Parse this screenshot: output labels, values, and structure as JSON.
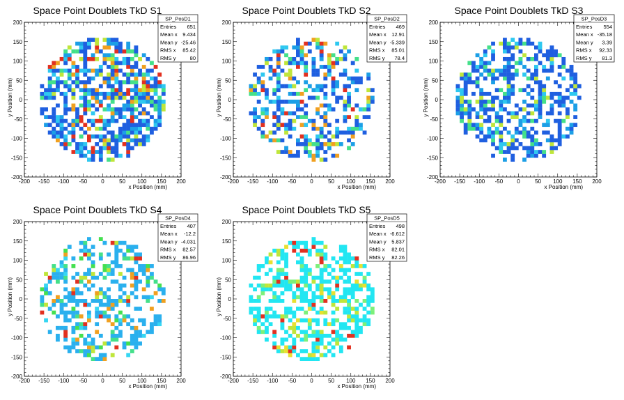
{
  "chart_data": [
    {
      "type": "heatmap",
      "title": "Space Point Doublets TkD S1",
      "xlabel": "x Position (mm)",
      "ylabel": "y Position (mm)",
      "xlim": [
        -200,
        200
      ],
      "ylim": [
        -200,
        200
      ],
      "xticks": [
        "-200",
        "-150",
        "-100",
        "-50",
        "0",
        "50",
        "100",
        "150",
        "200"
      ],
      "yticks": [
        "-200",
        "-150",
        "-100",
        "-50",
        "0",
        "50",
        "100",
        "150",
        "200"
      ],
      "bin_width_mm": 10,
      "circle_radius_mm": 160,
      "fill_fraction": 0.62,
      "palette": [
        "#1f5fe0",
        "#1c9fe6",
        "#2ec8f0",
        "#44e08a",
        "#bfe63a",
        "#f0a020",
        "#e23020"
      ],
      "seed": 11,
      "stats": {
        "name": "SP_PosD1",
        "rows": [
          [
            "Entries",
            "651"
          ],
          [
            "Mean x",
            "9.434"
          ],
          [
            "Mean y",
            "-25.46"
          ],
          [
            "RMS x",
            "85.42"
          ],
          [
            "RMS y",
            "80"
          ]
        ]
      }
    },
    {
      "type": "heatmap",
      "title": "Space Point Doublets TkD S2",
      "xlabel": "x Position (mm)",
      "ylabel": "y Position (mm)",
      "xlim": [
        -200,
        200
      ],
      "ylim": [
        -200,
        200
      ],
      "xticks": [
        "-200",
        "-150",
        "-100",
        "-50",
        "0",
        "50",
        "100",
        "150",
        "200"
      ],
      "yticks": [
        "-200",
        "-150",
        "-100",
        "-50",
        "0",
        "50",
        "100",
        "150",
        "200"
      ],
      "bin_width_mm": 10,
      "circle_radius_mm": 160,
      "fill_fraction": 0.45,
      "palette": [
        "#1f5fe0",
        "#1c9fe6",
        "#2ec8f0",
        "#44e08a",
        "#bfe63a",
        "#f0a020",
        "#e23020"
      ],
      "seed": 23,
      "stats": {
        "name": "SP_PosD2",
        "rows": [
          [
            "Entries",
            "469"
          ],
          [
            "Mean x",
            "12.91"
          ],
          [
            "Mean y",
            "-5.339"
          ],
          [
            "RMS x",
            "85.01"
          ],
          [
            "RMS y",
            "78.4"
          ]
        ]
      }
    },
    {
      "type": "heatmap",
      "title": "Space Point Doublets TkD S3",
      "xlabel": "x Position (mm)",
      "ylabel": "y Position (mm)",
      "xlim": [
        -200,
        200
      ],
      "ylim": [
        -200,
        200
      ],
      "xticks": [
        "-200",
        "-150",
        "-100",
        "-50",
        "0",
        "50",
        "100",
        "150",
        "200"
      ],
      "yticks": [
        "-200",
        "-150",
        "-100",
        "-50",
        "0",
        "50",
        "100",
        "150",
        "200"
      ],
      "bin_width_mm": 10,
      "circle_radius_mm": 160,
      "fill_fraction": 0.5,
      "palette": [
        "#1f5fe0",
        "#1f5fe0",
        "#1c9fe6",
        "#2ec8f0",
        "#44e08a",
        "#bfe63a"
      ],
      "seed": 37,
      "stats": {
        "name": "SP_PosD3",
        "rows": [
          [
            "Entries",
            "554"
          ],
          [
            "Mean x",
            "-35.18"
          ],
          [
            "Mean y",
            "3.39"
          ],
          [
            "RMS x",
            "92.33"
          ],
          [
            "RMS y",
            "81.3"
          ]
        ]
      }
    },
    {
      "type": "heatmap",
      "title": "Space Point Doublets TkD S4",
      "xlabel": "x Position (mm)",
      "ylabel": "y Position (mm)",
      "xlim": [
        -200,
        200
      ],
      "ylim": [
        -200,
        200
      ],
      "xticks": [
        "-200",
        "-150",
        "-100",
        "-50",
        "0",
        "50",
        "100",
        "150",
        "200"
      ],
      "yticks": [
        "-200",
        "-150",
        "-100",
        "-50",
        "0",
        "50",
        "100",
        "150",
        "200"
      ],
      "bin_width_mm": 10,
      "circle_radius_mm": 160,
      "fill_fraction": 0.42,
      "palette": [
        "#2ab0ee",
        "#2ab0ee",
        "#2ab0ee",
        "#36d6f2",
        "#44e08a",
        "#44e050",
        "#bfe63a",
        "#f0a020",
        "#e23020"
      ],
      "seed": 41,
      "stats": {
        "name": "SP_PosD4",
        "rows": [
          [
            "Entries",
            "407"
          ],
          [
            "Mean x",
            "-12.2"
          ],
          [
            "Mean y",
            "-4.031"
          ],
          [
            "RMS x",
            "82.57"
          ],
          [
            "RMS y",
            "86.96"
          ]
        ]
      }
    },
    {
      "type": "heatmap",
      "title": "Space Point Doublets TkD S5",
      "xlabel": "x Position (mm)",
      "ylabel": "y Position (mm)",
      "xlim": [
        -200,
        200
      ],
      "ylim": [
        -200,
        200
      ],
      "xticks": [
        "-200",
        "-150",
        "-100",
        "-50",
        "0",
        "50",
        "100",
        "150",
        "200"
      ],
      "yticks": [
        "-200",
        "-150",
        "-100",
        "-50",
        "0",
        "50",
        "100",
        "150",
        "200"
      ],
      "bin_width_mm": 10,
      "circle_radius_mm": 160,
      "fill_fraction": 0.48,
      "palette": [
        "#22e6f2",
        "#22e6f2",
        "#22e6f2",
        "#22e6f2",
        "#7cf07a",
        "#bfe63a",
        "#e8e030",
        "#e23020"
      ],
      "seed": 53,
      "stats": {
        "name": "SP_PosD5",
        "rows": [
          [
            "Entries",
            "498"
          ],
          [
            "Mean x",
            "-6.612"
          ],
          [
            "Mean y",
            "5.837"
          ],
          [
            "RMS x",
            "82.01"
          ],
          [
            "RMS y",
            "82.26"
          ]
        ]
      }
    }
  ]
}
